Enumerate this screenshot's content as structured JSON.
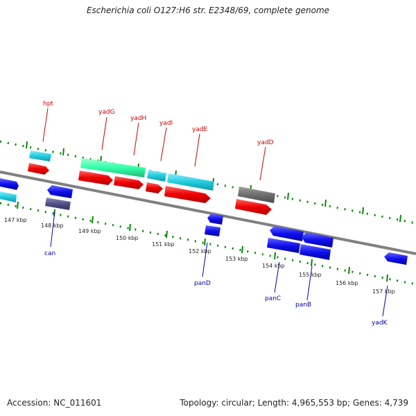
{
  "header": {
    "title": "Escherichia coli O127:H6 str. E2348/69, complete genome"
  },
  "footer": {
    "accession": "Accession: NC_011601",
    "summary": "Topology: circular; Length: 4,965,553 bp; Genes: 4,739"
  },
  "map": {
    "scale_labels": [
      "147 kbp",
      "148 kbp",
      "149 kbp",
      "150 kbp",
      "151 kbp",
      "152 kbp",
      "153 kbp",
      "154 kbp",
      "155 kbp",
      "156 kbp",
      "157 kbp"
    ],
    "top_gene_labels": [
      "hpt",
      "yadG",
      "yadH",
      "yadI",
      "yadE",
      "yadD"
    ],
    "bottom_gene_labels": [
      "can",
      "panD",
      "panC",
      "panB",
      "yadK"
    ],
    "colors": {
      "backbone": "#808080",
      "forward_cds": "#ff0000",
      "reverse_cds": "#0000ee",
      "feature_cyan": "#33ccdd",
      "feature_green": "#33ffaa",
      "feature_dark": "#5a5a8a",
      "feature_gray": "#6e6e6e",
      "gc_skew_dots": "#008800",
      "top_label": "#cc0000",
      "bottom_label": "#0000aa"
    }
  }
}
